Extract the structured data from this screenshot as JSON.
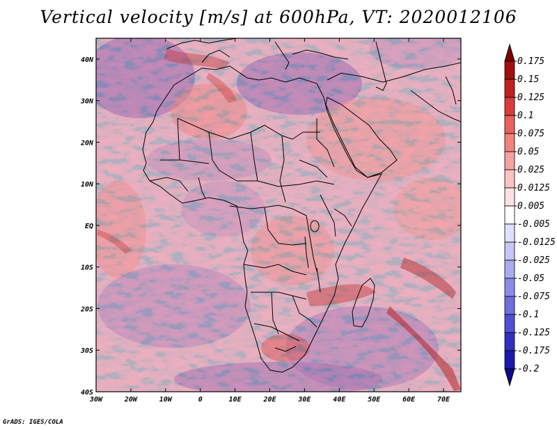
{
  "title": "Vertical velocity [m/s] at 600hPa, VT: 2020012106",
  "credit": "GrADS: IGES/COLA",
  "map": {
    "lat_ticks": [
      "40N",
      "30N",
      "20N",
      "10N",
      "EQ",
      "10S",
      "20S",
      "30S",
      "40S"
    ],
    "lon_ticks": [
      "30W",
      "20W",
      "10W",
      "0",
      "10E",
      "20E",
      "30E",
      "40E",
      "50E",
      "60E",
      "70E"
    ],
    "lat_range": [
      -40,
      45
    ],
    "lon_range": [
      -30,
      75
    ]
  },
  "colorbar": {
    "levels": [
      "0.175",
      "0.15",
      "0.125",
      "0.1",
      "0.075",
      "0.05",
      "0.025",
      "0.0125",
      "0.005",
      "-0.005",
      "-0.0125",
      "-0.025",
      "-0.05",
      "-0.075",
      "-0.1",
      "-0.125",
      "-0.175",
      "-0.2"
    ],
    "colors": [
      "#7a0000",
      "#a01010",
      "#c02020",
      "#d83c3c",
      "#e86060",
      "#f08282",
      "#f4a2a2",
      "#f8c4c4",
      "#fce2e2",
      "#ffffff",
      "#e0e0fa",
      "#c6c6f4",
      "#aaaaee",
      "#8c8ce6",
      "#6e6ede",
      "#5050d2",
      "#3030c0",
      "#1a1aa8",
      "#0c0c8a"
    ]
  }
}
